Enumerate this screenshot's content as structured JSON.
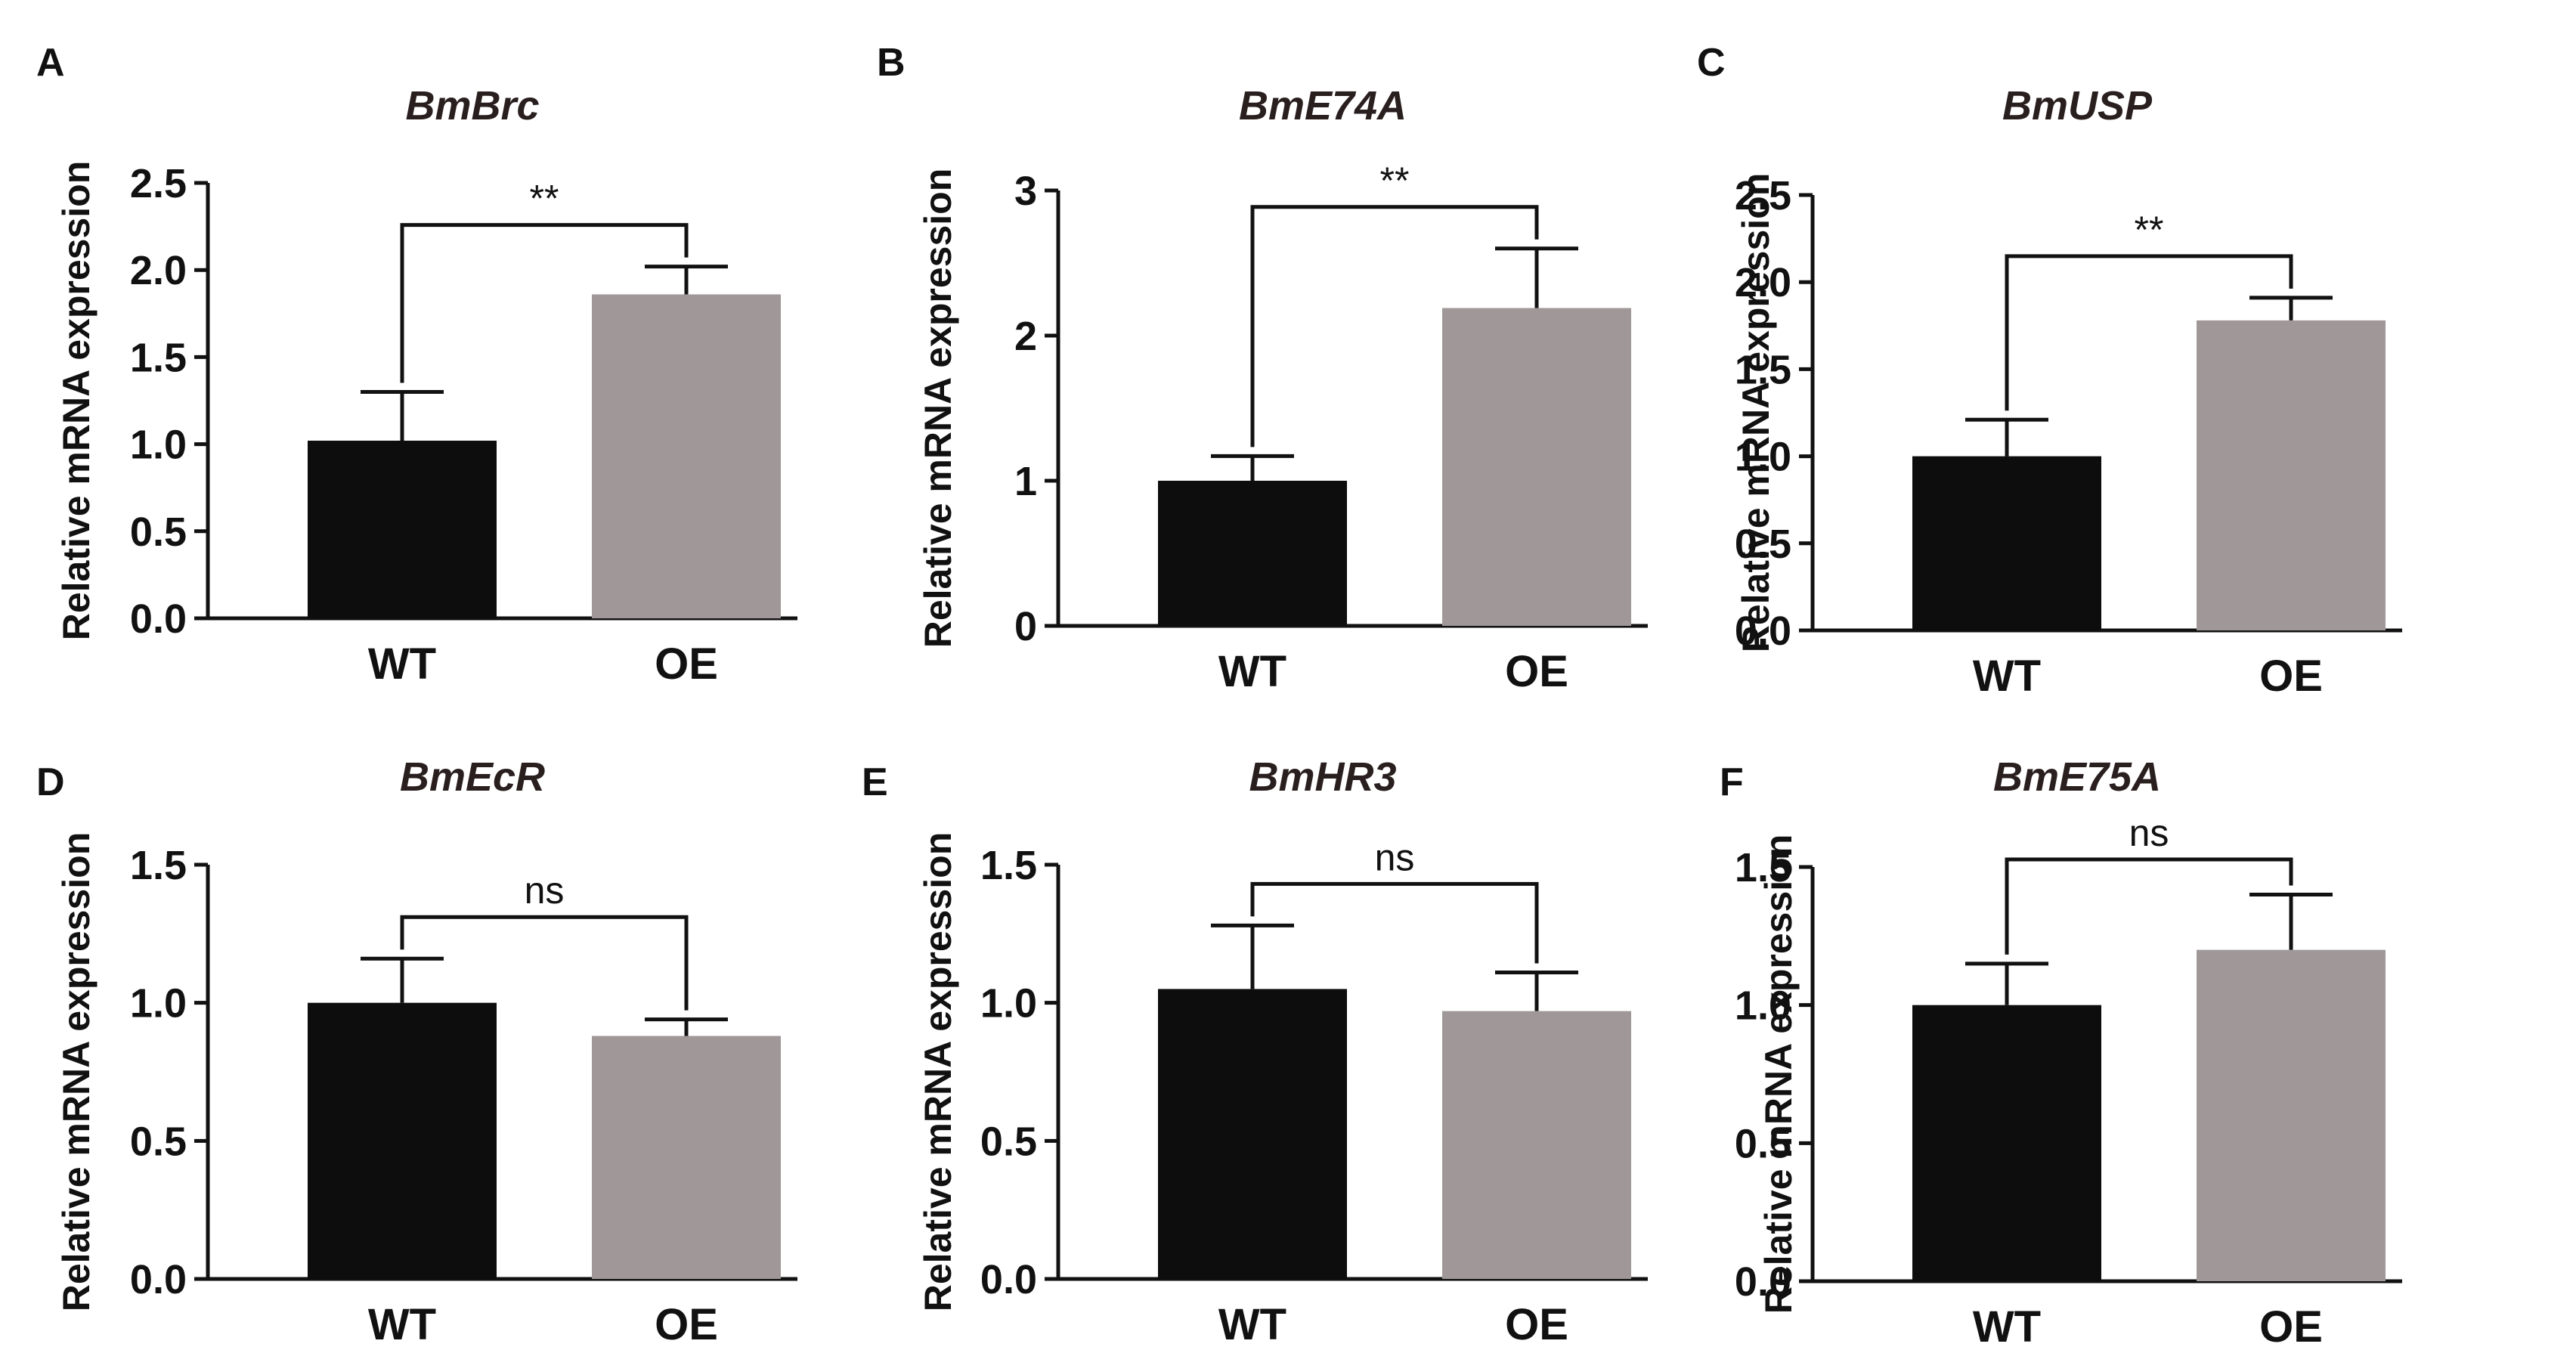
{
  "colors": {
    "WT": "#0d0d0d",
    "OE": "#a09898",
    "axis": "#111111"
  },
  "chart_data": [
    {
      "panel": "A",
      "type": "bar",
      "title": "BmBrc",
      "ylabel": "Relative mRNA expression",
      "categories": [
        "WT",
        "OE"
      ],
      "values": [
        1.02,
        1.86
      ],
      "errors": [
        0.28,
        0.16
      ],
      "ylim": [
        0,
        2.5
      ],
      "yticks": [
        "0.0",
        "0.5",
        "1.0",
        "1.5",
        "2.0",
        "2.5"
      ],
      "significance": "**"
    },
    {
      "panel": "B",
      "type": "bar",
      "title": "BmE74A",
      "ylabel": "Relative mRNA expression",
      "categories": [
        "WT",
        "OE"
      ],
      "values": [
        1.0,
        2.19
      ],
      "errors": [
        0.17,
        0.41
      ],
      "ylim": [
        0,
        3
      ],
      "yticks": [
        "0",
        "1",
        "2",
        "3"
      ],
      "significance": "**"
    },
    {
      "panel": "C",
      "type": "bar",
      "title": "BmUSP",
      "ylabel": "Relative mRNA expression",
      "categories": [
        "WT",
        "OE"
      ],
      "values": [
        1.0,
        1.78
      ],
      "errors": [
        0.21,
        0.13
      ],
      "ylim": [
        0,
        2.5
      ],
      "yticks": [
        "0.0",
        "0.5",
        "1.0",
        "1.5",
        "2.0",
        "2.5"
      ],
      "significance": "**"
    },
    {
      "panel": "D",
      "type": "bar",
      "title": "BmEcR",
      "ylabel": "Relative mRNA expression",
      "categories": [
        "WT",
        "OE"
      ],
      "values": [
        1.0,
        0.88
      ],
      "errors": [
        0.16,
        0.06
      ],
      "ylim": [
        0,
        1.5
      ],
      "yticks": [
        "0.0",
        "0.5",
        "1.0",
        "1.5"
      ],
      "significance": "ns"
    },
    {
      "panel": "E",
      "type": "bar",
      "title": "BmHR3",
      "ylabel": "Relative mRNA expression",
      "categories": [
        "WT",
        "OE"
      ],
      "values": [
        1.05,
        0.97
      ],
      "errors": [
        0.23,
        0.14
      ],
      "ylim": [
        0,
        1.5
      ],
      "yticks": [
        "0.0",
        "0.5",
        "1.0",
        "1.5"
      ],
      "significance": "ns"
    },
    {
      "panel": "F",
      "type": "bar",
      "title": "BmE75A",
      "ylabel": "Relative mRNA expression",
      "categories": [
        "WT",
        "OE"
      ],
      "values": [
        1.0,
        1.2
      ],
      "errors": [
        0.15,
        0.2
      ],
      "ylim": [
        0,
        1.5
      ],
      "yticks": [
        "0.0",
        "0.5",
        "1.0",
        "1.5"
      ],
      "significance": "ns"
    }
  ]
}
